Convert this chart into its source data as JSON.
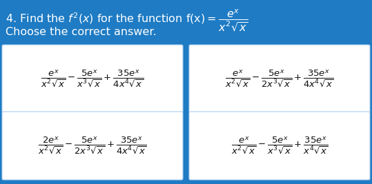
{
  "background_color": "#1E7BC4",
  "box_facecolor": "#FFFFFF",
  "box_edgecolor": "#AACCEE",
  "text_color": "#111111",
  "header_text_color": "#FFFFFF",
  "font_size_title": 11.5,
  "font_size_answer": 9.5,
  "title1": "4. Find the $f^2(x)$ for the function $f(x) = \\dfrac{e^x}{x^2\\sqrt{x}}$",
  "title2": "Choose the correct answer.",
  "answers": [
    "$\\dfrac{e^x}{x^2\\sqrt{x}} - \\dfrac{5e^x}{x^3\\sqrt{x}} + \\dfrac{35e^x}{4x^4\\sqrt{x}}$",
    "$\\dfrac{e^x}{x^2\\sqrt{x}} - \\dfrac{5e^x}{2x^3\\sqrt{x}} + \\dfrac{35e^x}{4x^4\\sqrt{x}}$",
    "$\\dfrac{2e^x}{x^2\\sqrt{x}} - \\dfrac{5e^x}{2x^3\\sqrt{x}} + \\dfrac{35e^x}{4x^4\\sqrt{x}}$",
    "$\\dfrac{e^x}{x^2\\sqrt{x}} - \\dfrac{5e^x}{x^3\\sqrt{x}} + \\dfrac{35e^x}{x^4\\sqrt{x}}$"
  ]
}
